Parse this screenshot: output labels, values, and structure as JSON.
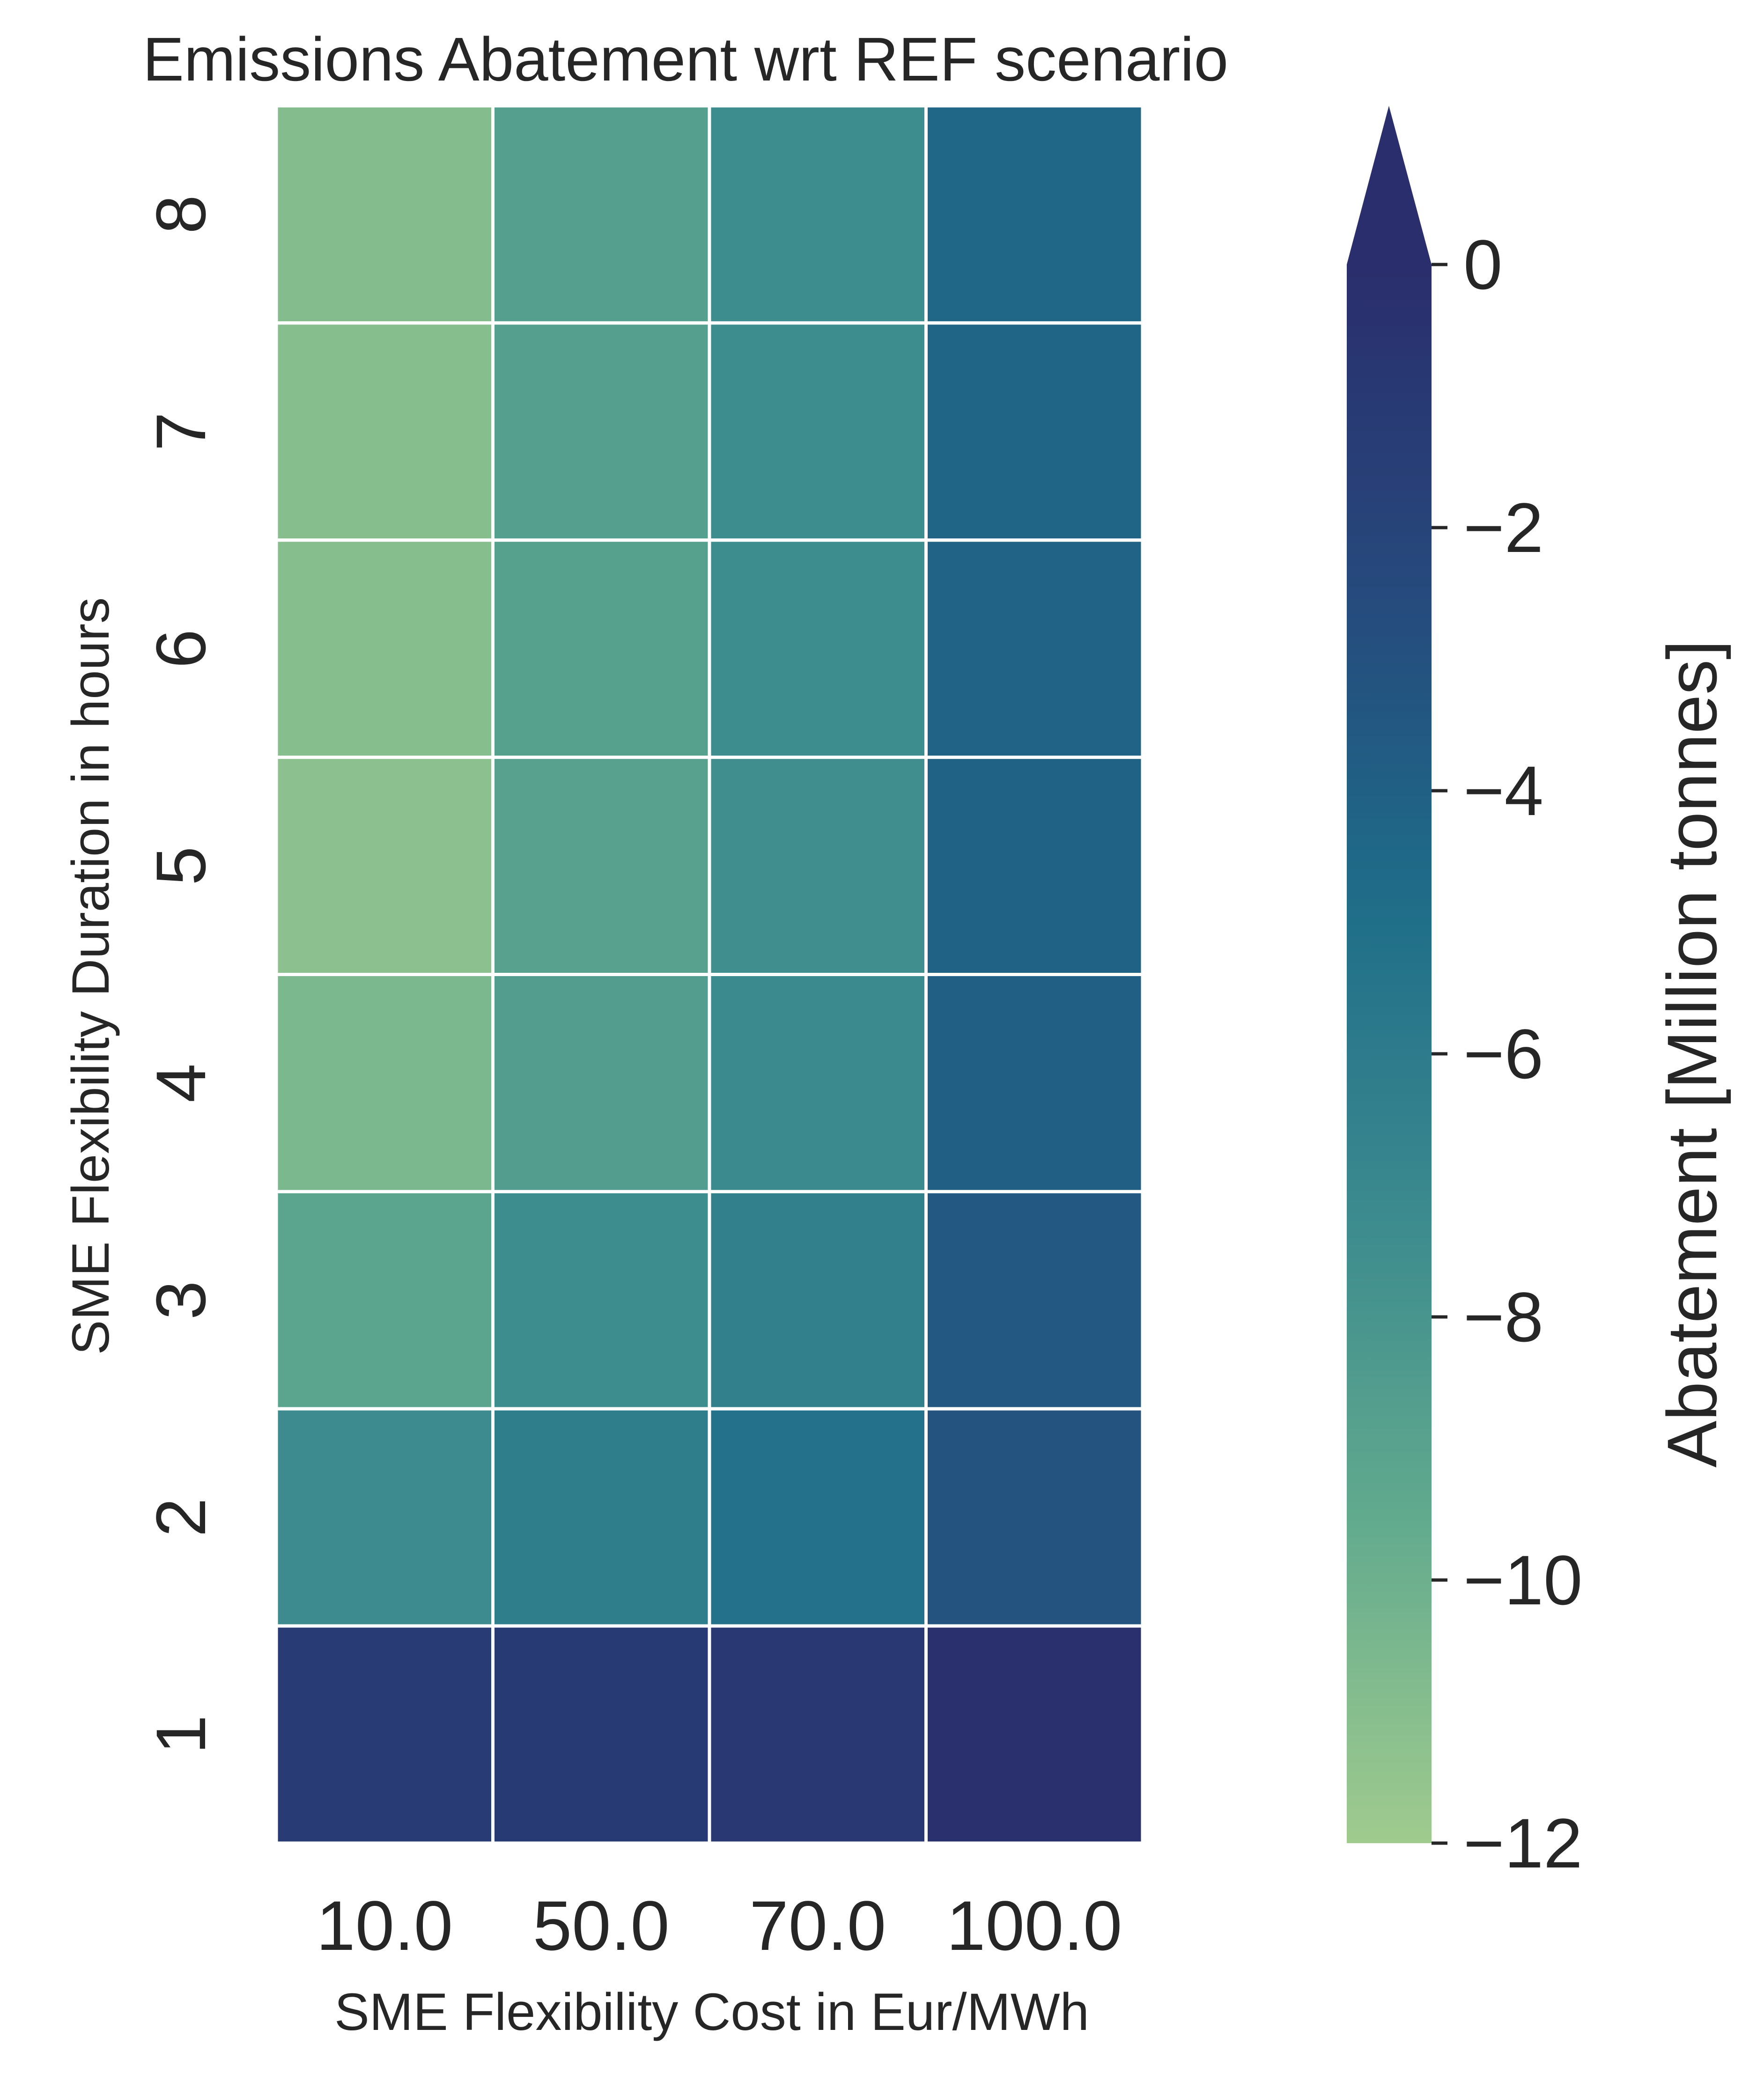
{
  "chart_data": {
    "type": "heatmap",
    "title": "Emissions Abatement wrt REF scenario",
    "xlabel": "SME Flexibility Cost in Eur/MWh",
    "ylabel": "SME Flexibility Duration in hours",
    "x_categories": [
      "10.0",
      "50.0",
      "70.0",
      "100.0"
    ],
    "y_categories": [
      "8",
      "7",
      "6",
      "5",
      "4",
      "3",
      "2",
      "1"
    ],
    "values": [
      [
        -10.9,
        -8.7,
        -7.4,
        -4.4
      ],
      [
        -11.0,
        -8.7,
        -7.4,
        -4.3
      ],
      [
        -11.0,
        -8.8,
        -7.4,
        -4.2
      ],
      [
        -11.2,
        -8.9,
        -7.5,
        -4.1
      ],
      [
        -10.6,
        -8.6,
        -7.2,
        -3.9
      ],
      [
        -9.1,
        -7.4,
        -6.4,
        -3.5
      ],
      [
        -7.3,
        -6.2,
        -5.2,
        -3.1
      ],
      [
        -1.2,
        -1.1,
        -0.9,
        -0.2
      ]
    ],
    "colorbar": {
      "label": "Abatement [Million tonnes]",
      "vmin": -12,
      "vmax": 0,
      "ticks": [
        0,
        -2,
        -4,
        -6,
        -8,
        -10,
        -12
      ],
      "tick_labels": [
        "0",
        "−2",
        "−4",
        "−6",
        "−8",
        "−10",
        "−12"
      ],
      "extend": "max",
      "colormap": "crest",
      "colors": [
        "#a0cb8e",
        "#63ab8e",
        "#3b8a8e",
        "#1e6c89",
        "#26487c",
        "#2a2e6c"
      ]
    },
    "grid": false,
    "cell_border_color": "#ffffff"
  }
}
